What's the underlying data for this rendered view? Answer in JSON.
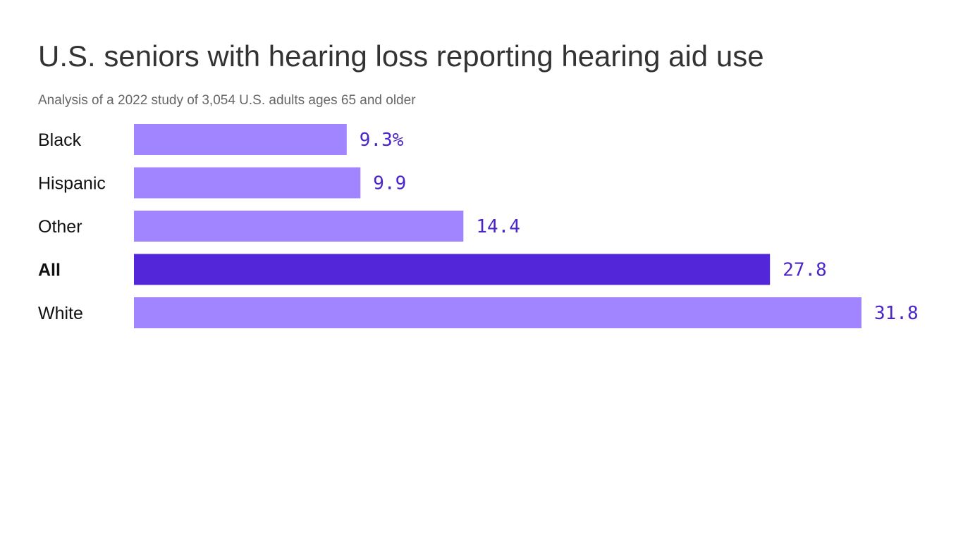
{
  "header": {
    "title": "U.S. seniors with hearing loss reporting hearing aid use",
    "subtitle": "Analysis of a 2022 study of 3,054 U.S. adults ages 65 and older"
  },
  "colors": {
    "bar": "#a184ff",
    "highlight_bar": "#5326d9",
    "value_text": "#4b25c9",
    "category_text": "#111111"
  },
  "chart_data": {
    "type": "bar",
    "orientation": "horizontal",
    "title": "U.S. seniors with hearing loss reporting hearing aid use",
    "subtitle": "Analysis of a 2022 study of 3,054 U.S. adults ages 65 and older",
    "categories": [
      "Black",
      "Hispanic",
      "Other",
      "All",
      "White"
    ],
    "values": [
      9.3,
      9.9,
      14.4,
      27.8,
      31.8
    ],
    "value_labels": [
      "9.3%",
      "9.9",
      "14.4",
      "27.8",
      "31.8"
    ],
    "highlight": "All",
    "xlim": [
      0,
      31.8
    ],
    "grid": false,
    "legend": "none"
  }
}
